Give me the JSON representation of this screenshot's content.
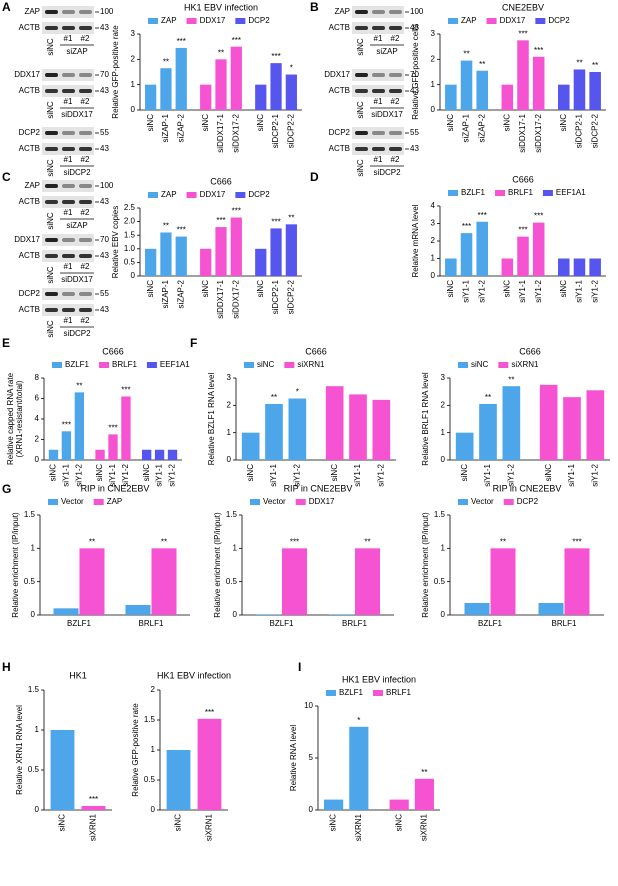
{
  "panels": [
    "A",
    "B",
    "C",
    "D",
    "E",
    "F",
    "G",
    "H",
    "I"
  ],
  "blots": [
    [
      {
        "bands": [
          {
            "label": "ZAP",
            "marker": "100"
          },
          {
            "label": "ACTB",
            "marker": "43"
          }
        ],
        "lanes": [
          "siNC",
          "#1",
          "#2"
        ],
        "group": "siZAP"
      },
      {
        "bands": [
          {
            "label": "DDX17",
            "marker": "70"
          },
          {
            "label": "ACTB",
            "marker": "43"
          }
        ],
        "lanes": [
          "siNC",
          "#1",
          "#2"
        ],
        "group": "siDDX17"
      },
      {
        "bands": [
          {
            "label": "DCP2",
            "marker": "55"
          },
          {
            "label": "ACTB",
            "marker": "43"
          }
        ],
        "lanes": [
          "siNC",
          "#1",
          "#2"
        ],
        "group": "siDCP2"
      }
    ],
    [
      {
        "bands": [
          {
            "label": "ZAP",
            "marker": "100"
          },
          {
            "label": "ACTB",
            "marker": "43"
          }
        ],
        "lanes": [
          "siNC",
          "#1",
          "#2"
        ],
        "group": "siZAP"
      },
      {
        "bands": [
          {
            "label": "DDX17",
            "marker": "70"
          },
          {
            "label": "ACTB",
            "marker": "43"
          }
        ],
        "lanes": [
          "siNC",
          "#1",
          "#2"
        ],
        "group": "siDDX17"
      },
      {
        "bands": [
          {
            "label": "DCP2",
            "marker": "55"
          },
          {
            "label": "ACTB",
            "marker": "43"
          }
        ],
        "lanes": [
          "siNC",
          "#1",
          "#2"
        ],
        "group": "siDCP2"
      }
    ],
    [
      {
        "bands": [
          {
            "label": "ZAP",
            "marker": "100"
          },
          {
            "label": "ACTB",
            "marker": "43"
          }
        ],
        "lanes": [
          "siNC",
          "#1",
          "#2"
        ],
        "group": "siZAP"
      },
      {
        "bands": [
          {
            "label": "DDX17",
            "marker": "70"
          },
          {
            "label": "ACTB",
            "marker": "43"
          }
        ],
        "lanes": [
          "siNC",
          "#1",
          "#2"
        ],
        "group": "siDDX17"
      },
      {
        "bands": [
          {
            "label": "DCP2",
            "marker": "55"
          },
          {
            "label": "ACTB",
            "marker": "43"
          }
        ],
        "lanes": [
          "siNC",
          "#1",
          "#2"
        ],
        "group": "siDCP2"
      }
    ]
  ],
  "chart_data": [
    {
      "type": "bar",
      "title": "HK1 EBV infection",
      "ylabel": "Relative GFP-positive rate",
      "ylim": [
        0,
        3
      ],
      "yticks": [
        0,
        1,
        2,
        3
      ],
      "categories": [
        "siNC",
        "siZAP-1",
        "siZAP-2",
        "siNC",
        "siDDX17-1",
        "siDDX17-2",
        "siNC",
        "siDCP2-1",
        "siDCP2-2"
      ],
      "series": [
        {
          "name": "ZAP",
          "color": "#4da6ea",
          "values": [
            1,
            1.65,
            2.45,
            null,
            null,
            null,
            null,
            null,
            null
          ],
          "significance": [
            null,
            "**",
            "***",
            null,
            null,
            null,
            null,
            null,
            null
          ]
        },
        {
          "name": "DDX17",
          "color": "#f653d3",
          "values": [
            null,
            null,
            null,
            1,
            2.0,
            2.5,
            null,
            null,
            null
          ],
          "significance": [
            null,
            null,
            null,
            null,
            "**",
            "***",
            null,
            null,
            null
          ]
        },
        {
          "name": "DCP2",
          "color": "#5656ee",
          "values": [
            null,
            null,
            null,
            null,
            null,
            null,
            1,
            1.85,
            1.4
          ],
          "significance": [
            null,
            null,
            null,
            null,
            null,
            null,
            null,
            "***",
            "*"
          ]
        }
      ]
    },
    {
      "type": "bar",
      "title": "CNE2EBV",
      "ylabel": "Relative GFP-positive cells",
      "ylim": [
        0,
        3
      ],
      "yticks": [
        0,
        1,
        2,
        3
      ],
      "categories": [
        "siNC",
        "siZAP-1",
        "siZAP-2",
        "siNC",
        "siDDX17-1",
        "siDDX17-2",
        "siNC",
        "siDCP2-1",
        "siDCP2-2"
      ],
      "series": [
        {
          "name": "ZAP",
          "color": "#4da6ea",
          "values": [
            1,
            1.95,
            1.55,
            null,
            null,
            null,
            null,
            null,
            null
          ],
          "significance": [
            null,
            "**",
            "**",
            null,
            null,
            null,
            null,
            null,
            null
          ]
        },
        {
          "name": "DDX17",
          "color": "#f653d3",
          "values": [
            null,
            null,
            null,
            1,
            2.75,
            2.1,
            null,
            null,
            null
          ],
          "significance": [
            null,
            null,
            null,
            null,
            "***",
            "***",
            null,
            null,
            null
          ]
        },
        {
          "name": "DCP2",
          "color": "#5656ee",
          "values": [
            null,
            null,
            null,
            null,
            null,
            null,
            1,
            1.6,
            1.5
          ],
          "significance": [
            null,
            null,
            null,
            null,
            null,
            null,
            null,
            "**",
            "**"
          ]
        }
      ]
    },
    {
      "type": "bar",
      "title": "C666",
      "ylabel": "Relative EBV copies",
      "ylim": [
        0,
        2.5
      ],
      "yticks": [
        0,
        0.5,
        {
          "value": 1,
          "label": "1.0"
        },
        1.5,
        {
          "value": 2,
          "label": "2.0"
        },
        2.5
      ],
      "categories": [
        "siNC",
        "siZAP-1",
        "siZAP-2",
        "siNC",
        "siDDX17-1",
        "siDDX17-2",
        "siNC",
        "siDCP2-1",
        "siDCP2-2"
      ],
      "series": [
        {
          "name": "ZAP",
          "color": "#4da6ea",
          "values": [
            1,
            1.6,
            1.45,
            null,
            null,
            null,
            null,
            null,
            null
          ],
          "significance": [
            null,
            "**",
            "***",
            null,
            null,
            null,
            null,
            null,
            null
          ]
        },
        {
          "name": "DDX17",
          "color": "#f653d3",
          "values": [
            null,
            null,
            null,
            1,
            1.8,
            2.15,
            null,
            null,
            null
          ],
          "significance": [
            null,
            null,
            null,
            null,
            "***",
            "***",
            null,
            null,
            null
          ]
        },
        {
          "name": "DCP2",
          "color": "#5656ee",
          "values": [
            null,
            null,
            null,
            null,
            null,
            null,
            1,
            1.75,
            1.9
          ],
          "significance": [
            null,
            null,
            null,
            null,
            null,
            null,
            null,
            "***",
            "**"
          ]
        }
      ]
    },
    {
      "type": "bar",
      "title": "C666",
      "ylabel": "Relative mRNA level",
      "ylim": [
        0,
        4
      ],
      "yticks": [
        0,
        1,
        2,
        3,
        4
      ],
      "categories": [
        "siNC",
        "siY1-1",
        "siY1-2",
        "siNC",
        "siY1-1",
        "siY1-2",
        "siNC",
        "siY1-1",
        "siY1-2"
      ],
      "series": [
        {
          "name": "BZLF1",
          "color": "#4da6ea",
          "values": [
            1,
            2.45,
            3.1,
            null,
            null,
            null,
            null,
            null,
            null
          ],
          "significance": [
            null,
            "***",
            "***",
            null,
            null,
            null,
            null,
            null,
            null
          ]
        },
        {
          "name": "BRLF1",
          "color": "#f653d3",
          "values": [
            null,
            null,
            null,
            1,
            2.25,
            3.05,
            null,
            null,
            null
          ],
          "significance": [
            null,
            null,
            null,
            null,
            "***",
            "***",
            null,
            null,
            null
          ]
        },
        {
          "name": "EEF1A1",
          "color": "#5656ee",
          "values": [
            null,
            null,
            null,
            null,
            null,
            null,
            1,
            1,
            1
          ]
        }
      ]
    },
    {
      "type": "bar",
      "title": "C666",
      "ylabel": [
        "Relative capped RNA rate",
        "(XRN1-resistant/total)"
      ],
      "ylim": [
        0,
        8
      ],
      "yticks": [
        0,
        2,
        4,
        6,
        8
      ],
      "categories": [
        "siNC",
        "siY1-1",
        "siY1-2",
        "siNC",
        "siY1-1",
        "siY1-2",
        "siNC",
        "siY1-1",
        "siY1-2"
      ],
      "series": [
        {
          "name": "BZLF1",
          "color": "#4da6ea",
          "values": [
            1,
            2.8,
            6.6,
            null,
            null,
            null,
            null,
            null,
            null
          ],
          "significance": [
            null,
            "***",
            "**",
            null,
            null,
            null,
            null,
            null,
            null
          ]
        },
        {
          "name": "BRLF1",
          "color": "#f653d3",
          "values": [
            null,
            null,
            null,
            1,
            2.5,
            6.2,
            null,
            null,
            null
          ],
          "significance": [
            null,
            null,
            null,
            null,
            "***",
            "***",
            null,
            null,
            null
          ]
        },
        {
          "name": "EEF1A1",
          "color": "#5656ee",
          "values": [
            null,
            null,
            null,
            null,
            null,
            null,
            1,
            1,
            1
          ]
        }
      ]
    },
    {
      "type": "bar",
      "title": "C666",
      "ylabel": "Relative BZLF1 RNA level",
      "ylim": [
        0,
        3
      ],
      "yticks": [
        0,
        1,
        2,
        3
      ],
      "categories": [
        "siNC",
        "siY1-1",
        "siY1-2",
        "siNC",
        "siY1-1",
        "siY1-2"
      ],
      "series": [
        {
          "name": "siNC",
          "color": "#4da6ea",
          "values": [
            1,
            2.05,
            2.25,
            null,
            null,
            null
          ],
          "significance": [
            null,
            "**",
            "*",
            null,
            null,
            null
          ]
        },
        {
          "name": "siXRN1",
          "color": "#f653d3",
          "values": [
            null,
            null,
            null,
            2.7,
            2.4,
            2.2
          ]
        }
      ]
    },
    {
      "type": "bar",
      "title": "C666",
      "ylabel": "Relative BRLF1 RNA level",
      "ylim": [
        0,
        3
      ],
      "yticks": [
        0,
        1,
        2,
        3
      ],
      "categories": [
        "siNC",
        "siY1-1",
        "siY1-2",
        "siNC",
        "siY1-1",
        "siY1-2"
      ],
      "series": [
        {
          "name": "siNC",
          "color": "#4da6ea",
          "values": [
            1,
            2.05,
            2.7,
            null,
            null,
            null
          ],
          "significance": [
            null,
            "**",
            "**",
            null,
            null,
            null
          ]
        },
        {
          "name": "siXRN1",
          "color": "#f653d3",
          "values": [
            null,
            null,
            null,
            2.75,
            2.3,
            2.55
          ]
        }
      ]
    },
    {
      "type": "bar",
      "title": "RIP in CNE2EBV",
      "ylabel": "Relative enrichment (IP/input)",
      "ylim": [
        0,
        1.5
      ],
      "yticks": [
        0,
        0.5,
        1,
        1.5
      ],
      "categories": [
        "BZLF1",
        "BRLF1"
      ],
      "series": [
        {
          "name": "Vector",
          "color": "#4da6ea",
          "values": [
            0.1,
            0.15
          ]
        },
        {
          "name": "ZAP",
          "color": "#f653d3",
          "values": [
            1,
            1
          ],
          "significance": [
            "**",
            "**"
          ]
        }
      ]
    },
    {
      "type": "bar",
      "title": "RIP in CNE2EBV",
      "ylabel": "Relative enrichment (IP/input)",
      "ylim": [
        0,
        1.5
      ],
      "yticks": [
        0,
        0.5,
        1,
        1.5
      ],
      "categories": [
        "BZLF1",
        "BRLF1"
      ],
      "series": [
        {
          "name": "Vector",
          "color": "#4da6ea",
          "values": [
            0.01,
            0.01
          ]
        },
        {
          "name": "DDX17",
          "color": "#f653d3",
          "values": [
            1,
            1
          ],
          "significance": [
            "***",
            "**"
          ]
        }
      ]
    },
    {
      "type": "bar",
      "title": "RIP in CNE2EBV",
      "ylabel": "Relative enrichment (IP/input)",
      "ylim": [
        0,
        1.5
      ],
      "yticks": [
        0,
        0.5,
        1,
        1.5
      ],
      "categories": [
        "BZLF1",
        "BRLF1"
      ],
      "series": [
        {
          "name": "Vector",
          "color": "#4da6ea",
          "values": [
            0.18,
            0.18
          ]
        },
        {
          "name": "DCP2",
          "color": "#f653d3",
          "values": [
            1,
            1
          ],
          "significance": [
            "**",
            "***"
          ]
        }
      ]
    },
    {
      "type": "bar",
      "title": "HK1",
      "ylabel": "Relative XRN1 RNA level",
      "ylim": [
        0,
        1.5
      ],
      "yticks": [
        0,
        0.5,
        1,
        1.5
      ],
      "categories": [
        "siNC",
        "siXRN1"
      ],
      "values": [
        1,
        0.05
      ],
      "colors": [
        "#4da6ea",
        "#f653d3"
      ],
      "significance": [
        null,
        "***"
      ]
    },
    {
      "type": "bar",
      "title": "HK1 EBV infection",
      "ylabel": "Relative GFP-positive rate",
      "ylim": [
        0,
        2
      ],
      "yticks": [
        0,
        0.5,
        1,
        1.5,
        2
      ],
      "categories": [
        "siNC",
        "siXRN1"
      ],
      "values": [
        1,
        1.52
      ],
      "colors": [
        "#4da6ea",
        "#f653d3"
      ],
      "significance": [
        null,
        "***"
      ]
    },
    {
      "type": "bar",
      "title": "HK1 EBV infection",
      "ylabel": "Relative RNA level",
      "ylim": [
        0,
        10
      ],
      "yticks": [
        0,
        5,
        10
      ],
      "categories": [
        "siNC",
        "siXRN1",
        "siNC",
        "siXRN1"
      ],
      "series": [
        {
          "name": "BZLF1",
          "color": "#4da6ea",
          "values": [
            1,
            8,
            null,
            null
          ],
          "significance": [
            null,
            "*",
            null,
            null
          ]
        },
        {
          "name": "BRLF1",
          "color": "#f653d3",
          "values": [
            null,
            null,
            1,
            3
          ],
          "significance": [
            null,
            null,
            null,
            "**"
          ]
        }
      ]
    }
  ]
}
